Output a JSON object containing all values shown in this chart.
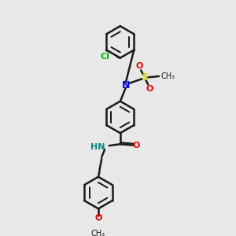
{
  "bg_color": "#e8e8e8",
  "bond_color": "#1a1a1a",
  "bond_width": 1.8,
  "cl_color": "#00bb00",
  "n_color": "#0000ee",
  "nh_color": "#008888",
  "o_color": "#ee0000",
  "s_color": "#cccc00",
  "figsize": [
    3.0,
    3.0
  ],
  "dpi": 100,
  "xlim": [
    0,
    10
  ],
  "ylim": [
    0,
    10
  ]
}
